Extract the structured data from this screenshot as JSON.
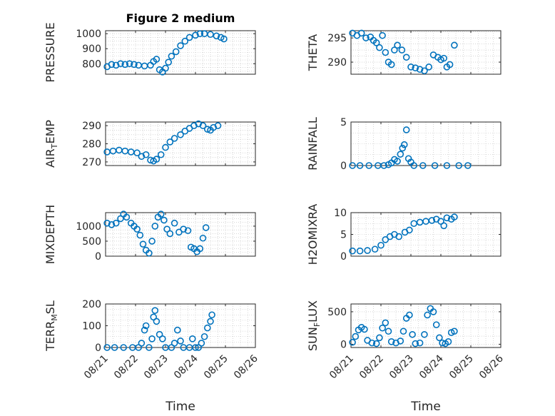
{
  "chart_data": [
    {
      "type": "scatter",
      "title": "Figure 2 medium",
      "xlabel": "",
      "ylabel": "PRESSURE",
      "ylim": [
        730,
        1020
      ],
      "yticks": [
        800,
        900,
        1000
      ],
      "xlim": [
        0,
        5
      ],
      "xticks": [
        "08/21",
        "08/22",
        "08/23",
        "08/24",
        "08/25",
        "08/26"
      ],
      "grid": "on",
      "points": [
        [
          0.05,
          780
        ],
        [
          0.2,
          795
        ],
        [
          0.35,
          790
        ],
        [
          0.5,
          800
        ],
        [
          0.65,
          795
        ],
        [
          0.8,
          800
        ],
        [
          0.95,
          795
        ],
        [
          1.1,
          790
        ],
        [
          1.3,
          785
        ],
        [
          1.5,
          790
        ],
        [
          1.6,
          815
        ],
        [
          1.7,
          830
        ],
        [
          1.8,
          760
        ],
        [
          1.9,
          745
        ],
        [
          2.0,
          770
        ],
        [
          2.1,
          810
        ],
        [
          2.2,
          850
        ],
        [
          2.35,
          880
        ],
        [
          2.5,
          920
        ],
        [
          2.65,
          950
        ],
        [
          2.8,
          975
        ],
        [
          3.0,
          990
        ],
        [
          3.15,
          1000
        ],
        [
          3.3,
          1000
        ],
        [
          3.5,
          995
        ],
        [
          3.7,
          985
        ],
        [
          3.85,
          975
        ],
        [
          3.95,
          965
        ]
      ]
    },
    {
      "type": "scatter",
      "title": "",
      "xlabel": "",
      "ylabel": "THETA",
      "ylim": [
        287.5,
        296.5
      ],
      "yticks": [
        290,
        295
      ],
      "xlim": [
        0,
        5
      ],
      "xticks": [
        "08/21",
        "08/22",
        "08/23",
        "08/24",
        "08/25",
        "08/26"
      ],
      "grid": "on",
      "points": [
        [
          0.05,
          296
        ],
        [
          0.2,
          295.5
        ],
        [
          0.35,
          296
        ],
        [
          0.5,
          295
        ],
        [
          0.65,
          295.2
        ],
        [
          0.75,
          294.5
        ],
        [
          0.85,
          294
        ],
        [
          0.95,
          293
        ],
        [
          1.05,
          295.5
        ],
        [
          1.15,
          292
        ],
        [
          1.25,
          290
        ],
        [
          1.35,
          289.5
        ],
        [
          1.45,
          292.5
        ],
        [
          1.55,
          293.5
        ],
        [
          1.7,
          292.5
        ],
        [
          1.85,
          291
        ],
        [
          2.0,
          289
        ],
        [
          2.15,
          288.8
        ],
        [
          2.3,
          288.5
        ],
        [
          2.45,
          288.2
        ],
        [
          2.6,
          289
        ],
        [
          2.75,
          291.5
        ],
        [
          2.9,
          291
        ],
        [
          3.0,
          290.5
        ],
        [
          3.1,
          290.8
        ],
        [
          3.2,
          289
        ],
        [
          3.3,
          289.5
        ],
        [
          3.45,
          293.5
        ]
      ]
    },
    {
      "type": "scatter",
      "title": "",
      "xlabel": "",
      "ylabel": "AIR_TEMP",
      "ylim": [
        268,
        292
      ],
      "yticks": [
        270,
        280,
        290
      ],
      "xlim": [
        0,
        5
      ],
      "xticks": [
        "08/21",
        "08/22",
        "08/23",
        "08/24",
        "08/25",
        "08/26"
      ],
      "grid": "on",
      "points": [
        [
          0.05,
          275.5
        ],
        [
          0.25,
          276
        ],
        [
          0.45,
          276.5
        ],
        [
          0.65,
          276
        ],
        [
          0.85,
          275.5
        ],
        [
          1.05,
          275
        ],
        [
          1.2,
          273
        ],
        [
          1.35,
          274
        ],
        [
          1.5,
          271
        ],
        [
          1.6,
          270.5
        ],
        [
          1.7,
          271.5
        ],
        [
          1.85,
          274
        ],
        [
          2.0,
          278
        ],
        [
          2.15,
          281
        ],
        [
          2.3,
          283
        ],
        [
          2.5,
          285
        ],
        [
          2.65,
          287
        ],
        [
          2.8,
          288.5
        ],
        [
          2.95,
          290
        ],
        [
          3.1,
          291
        ],
        [
          3.25,
          290
        ],
        [
          3.4,
          288
        ],
        [
          3.5,
          287.5
        ],
        [
          3.6,
          289
        ],
        [
          3.75,
          290
        ]
      ]
    },
    {
      "type": "scatter",
      "title": "",
      "xlabel": "",
      "ylabel": "RAINFALL",
      "ylim": [
        0,
        5
      ],
      "yticks": [
        0,
        5
      ],
      "xlim": [
        0,
        5
      ],
      "xticks": [
        "08/21",
        "08/22",
        "08/23",
        "08/24",
        "08/25",
        "08/26"
      ],
      "grid": "on",
      "points": [
        [
          0.05,
          0
        ],
        [
          0.3,
          0
        ],
        [
          0.6,
          0
        ],
        [
          0.9,
          0
        ],
        [
          1.1,
          0
        ],
        [
          1.25,
          0.1
        ],
        [
          1.35,
          0.3
        ],
        [
          1.45,
          0.7
        ],
        [
          1.55,
          0.5
        ],
        [
          1.65,
          1.3
        ],
        [
          1.72,
          2.0
        ],
        [
          1.78,
          2.4
        ],
        [
          1.85,
          4.1
        ],
        [
          1.92,
          0.8
        ],
        [
          2.0,
          0.4
        ],
        [
          2.1,
          0
        ],
        [
          2.4,
          0
        ],
        [
          2.8,
          0
        ],
        [
          3.2,
          0
        ],
        [
          3.6,
          0
        ],
        [
          3.9,
          0
        ]
      ]
    },
    {
      "type": "scatter",
      "title": "",
      "xlabel": "",
      "ylabel": "MIXDEPTH",
      "ylim": [
        0,
        1450
      ],
      "yticks": [
        0,
        500,
        1000
      ],
      "xlim": [
        0,
        5
      ],
      "xticks": [
        "08/21",
        "08/22",
        "08/23",
        "08/24",
        "08/25",
        "08/26"
      ],
      "grid": "on",
      "points": [
        [
          0.05,
          1100
        ],
        [
          0.2,
          1050
        ],
        [
          0.35,
          1100
        ],
        [
          0.5,
          1250
        ],
        [
          0.6,
          1400
        ],
        [
          0.7,
          1300
        ],
        [
          0.85,
          1100
        ],
        [
          0.95,
          1000
        ],
        [
          1.05,
          900
        ],
        [
          1.15,
          700
        ],
        [
          1.25,
          400
        ],
        [
          1.35,
          200
        ],
        [
          1.45,
          100
        ],
        [
          1.55,
          500
        ],
        [
          1.65,
          1000
        ],
        [
          1.75,
          1300
        ],
        [
          1.85,
          1400
        ],
        [
          1.95,
          1200
        ],
        [
          2.05,
          900
        ],
        [
          2.15,
          750
        ],
        [
          2.3,
          1100
        ],
        [
          2.45,
          800
        ],
        [
          2.6,
          900
        ],
        [
          2.75,
          850
        ],
        [
          2.85,
          300
        ],
        [
          2.95,
          250
        ],
        [
          3.05,
          150
        ],
        [
          3.15,
          250
        ],
        [
          3.25,
          600
        ],
        [
          3.35,
          950
        ]
      ]
    },
    {
      "type": "scatter",
      "title": "",
      "xlabel": "",
      "ylabel": "H2OMIXRA",
      "ylim": [
        0,
        10
      ],
      "yticks": [
        0,
        5,
        10
      ],
      "xlim": [
        0,
        5
      ],
      "xticks": [
        "08/21",
        "08/22",
        "08/23",
        "08/24",
        "08/25",
        "08/26"
      ],
      "grid": "on",
      "points": [
        [
          0.05,
          1.2
        ],
        [
          0.3,
          1.2
        ],
        [
          0.55,
          1.3
        ],
        [
          0.8,
          1.6
        ],
        [
          1.0,
          2.5
        ],
        [
          1.15,
          3.8
        ],
        [
          1.3,
          4.5
        ],
        [
          1.45,
          5.0
        ],
        [
          1.6,
          4.5
        ],
        [
          1.8,
          5.5
        ],
        [
          1.95,
          6.0
        ],
        [
          2.1,
          7.5
        ],
        [
          2.3,
          7.8
        ],
        [
          2.5,
          8.0
        ],
        [
          2.7,
          8.2
        ],
        [
          2.85,
          8.5
        ],
        [
          3.0,
          8.0
        ],
        [
          3.1,
          7.0
        ],
        [
          3.2,
          8.8
        ],
        [
          3.35,
          8.5
        ],
        [
          3.45,
          9.0
        ]
      ]
    },
    {
      "type": "scatter",
      "title": "",
      "xlabel": "Time",
      "ylabel": "TERR_MSL",
      "ylim": [
        0,
        200
      ],
      "yticks": [
        0,
        100,
        200
      ],
      "xlim": [
        0,
        5
      ],
      "xticks": [
        "08/21",
        "08/22",
        "08/23",
        "08/24",
        "08/25",
        "08/26"
      ],
      "grid": "on",
      "points": [
        [
          0.05,
          0
        ],
        [
          0.3,
          0
        ],
        [
          0.6,
          0
        ],
        [
          0.9,
          0
        ],
        [
          1.1,
          0
        ],
        [
          1.2,
          20
        ],
        [
          1.3,
          80
        ],
        [
          1.35,
          100
        ],
        [
          1.45,
          0
        ],
        [
          1.55,
          40
        ],
        [
          1.6,
          140
        ],
        [
          1.65,
          170
        ],
        [
          1.7,
          120
        ],
        [
          1.8,
          60
        ],
        [
          1.9,
          40
        ],
        [
          2.0,
          0
        ],
        [
          2.2,
          0
        ],
        [
          2.3,
          20
        ],
        [
          2.4,
          80
        ],
        [
          2.5,
          30
        ],
        [
          2.6,
          0
        ],
        [
          2.8,
          0
        ],
        [
          2.9,
          40
        ],
        [
          3.0,
          0
        ],
        [
          3.1,
          0
        ],
        [
          3.2,
          20
        ],
        [
          3.3,
          50
        ],
        [
          3.4,
          90
        ],
        [
          3.5,
          120
        ],
        [
          3.55,
          150
        ]
      ]
    },
    {
      "type": "scatter",
      "title": "",
      "xlabel": "Time",
      "ylabel": "SUN_FLUX",
      "ylim": [
        -50,
        620
      ],
      "yticks": [
        0,
        500
      ],
      "xlim": [
        0,
        5
      ],
      "xticks": [
        "08/21",
        "08/22",
        "08/23",
        "08/24",
        "08/25",
        "08/26"
      ],
      "grid": "on",
      "points": [
        [
          0.05,
          30
        ],
        [
          0.15,
          120
        ],
        [
          0.25,
          220
        ],
        [
          0.35,
          260
        ],
        [
          0.45,
          230
        ],
        [
          0.55,
          60
        ],
        [
          0.7,
          20
        ],
        [
          0.85,
          10
        ],
        [
          0.95,
          100
        ],
        [
          1.05,
          250
        ],
        [
          1.15,
          330
        ],
        [
          1.25,
          200
        ],
        [
          1.35,
          40
        ],
        [
          1.5,
          20
        ],
        [
          1.65,
          50
        ],
        [
          1.75,
          200
        ],
        [
          1.85,
          400
        ],
        [
          1.95,
          450
        ],
        [
          2.05,
          150
        ],
        [
          2.15,
          10
        ],
        [
          2.3,
          20
        ],
        [
          2.45,
          150
        ],
        [
          2.55,
          450
        ],
        [
          2.65,
          550
        ],
        [
          2.75,
          500
        ],
        [
          2.85,
          300
        ],
        [
          2.95,
          100
        ],
        [
          3.05,
          20
        ],
        [
          3.15,
          10
        ],
        [
          3.25,
          40
        ],
        [
          3.35,
          180
        ],
        [
          3.45,
          200
        ]
      ]
    }
  ]
}
